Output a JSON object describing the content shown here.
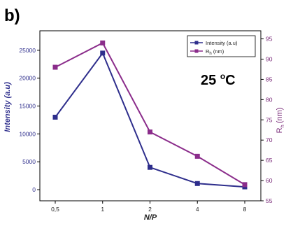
{
  "panel_label": "b)",
  "annotation": {
    "main": "25 ",
    "sup": "o",
    "unit": "C"
  },
  "chart_data": {
    "type": "line",
    "xlabel": "N/P",
    "categories": [
      "0,5",
      "1",
      "2",
      "4",
      "8"
    ],
    "y_left": {
      "label": "Intensity (a.u)",
      "ylim": [
        -2000,
        28500
      ],
      "ticks": [
        0,
        5000,
        10000,
        15000,
        20000,
        25000
      ]
    },
    "y_right": {
      "label_main": "R",
      "label_sub": "h",
      "label_unit": "(nm)",
      "ylim": [
        55,
        97
      ],
      "ticks": [
        55,
        60,
        65,
        70,
        75,
        80,
        85,
        90,
        95
      ]
    },
    "legend": {
      "position": "top-right",
      "items": [
        {
          "main": "Intensity (a.u)",
          "sub": "",
          "unit": ""
        },
        {
          "main": "R",
          "sub": "h",
          "unit": " (nm)"
        }
      ]
    },
    "series": [
      {
        "axis": "left",
        "color": "#2e2e8c",
        "values": [
          13000,
          24500,
          4000,
          1100,
          500
        ]
      },
      {
        "axis": "right",
        "color": "#8b2d8b",
        "values": [
          88,
          94,
          72,
          66,
          59
        ]
      }
    ],
    "grid": false
  }
}
